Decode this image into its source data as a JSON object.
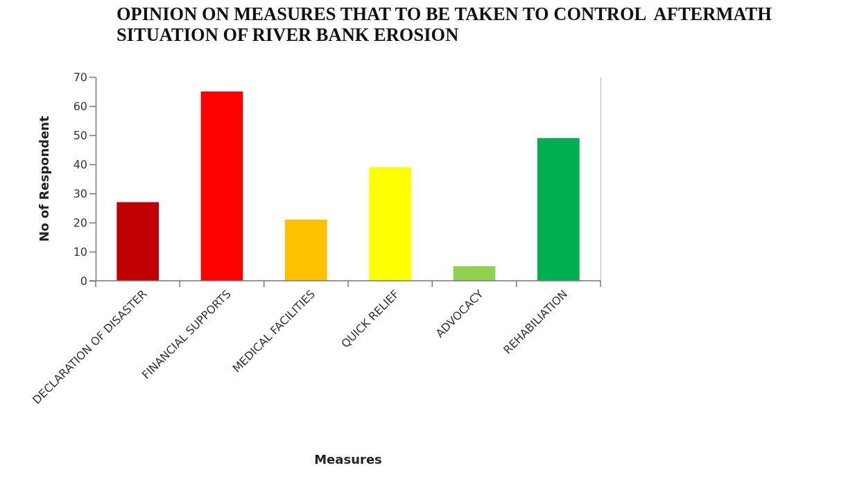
{
  "chart_data": {
    "type": "bar",
    "title": "OPINION ON MEASURES THAT TO BE TAKEN TO CONTROL  AFTERMATH SITUATION OF RIVER BANK EROSION",
    "xlabel": "Measures",
    "ylabel": "No of Respondent",
    "categories": [
      "DECLARATION OF DISASTER",
      "FINANCIAL SUPPORTS",
      "MEDICAL FACILITIES",
      "QUICK RELIEF",
      "ADVOCACY",
      "REHABILIATION"
    ],
    "values": [
      27,
      65,
      21,
      39,
      5,
      49
    ],
    "colors": [
      "#c00000",
      "#ff0000",
      "#ffc000",
      "#ffff00",
      "#92d050",
      "#00b050"
    ],
    "ylim": [
      0,
      70
    ],
    "yticks": [
      0,
      10,
      20,
      30,
      40,
      50,
      60,
      70
    ]
  }
}
